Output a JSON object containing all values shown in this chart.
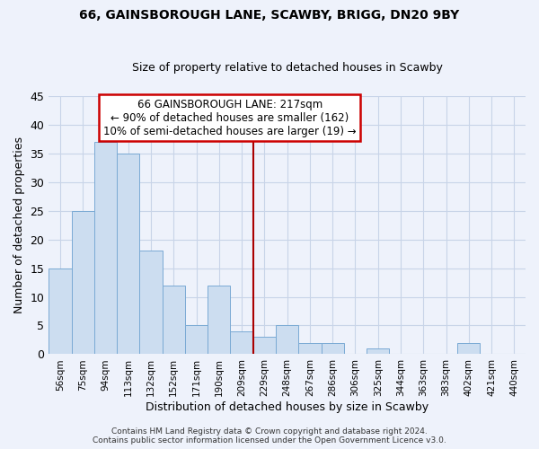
{
  "title": "66, GAINSBOROUGH LANE, SCAWBY, BRIGG, DN20 9BY",
  "subtitle": "Size of property relative to detached houses in Scawby",
  "xlabel": "Distribution of detached houses by size in Scawby",
  "ylabel": "Number of detached properties",
  "bin_labels": [
    "56sqm",
    "75sqm",
    "94sqm",
    "113sqm",
    "132sqm",
    "152sqm",
    "171sqm",
    "190sqm",
    "209sqm",
    "229sqm",
    "248sqm",
    "267sqm",
    "286sqm",
    "306sqm",
    "325sqm",
    "344sqm",
    "363sqm",
    "383sqm",
    "402sqm",
    "421sqm",
    "440sqm"
  ],
  "bar_values": [
    15,
    25,
    37,
    35,
    18,
    12,
    5,
    12,
    4,
    3,
    5,
    2,
    2,
    0,
    1,
    0,
    0,
    0,
    2,
    0,
    0
  ],
  "bar_color": "#ccddf0",
  "bar_edge_color": "#7aaad4",
  "vline_x_index": 8,
  "vline_color": "#aa0000",
  "annotation_line1": "66 GAINSBOROUGH LANE: 217sqm",
  "annotation_line2": "← 90% of detached houses are smaller (162)",
  "annotation_line3": "10% of semi-detached houses are larger (19) →",
  "ylim": [
    0,
    45
  ],
  "yticks": [
    0,
    5,
    10,
    15,
    20,
    25,
    30,
    35,
    40,
    45
  ],
  "footer_text": "Contains HM Land Registry data © Crown copyright and database right 2024.\nContains public sector information licensed under the Open Government Licence v3.0.",
  "bg_color": "#eef2fb",
  "grid_color": "#c8d4e8"
}
